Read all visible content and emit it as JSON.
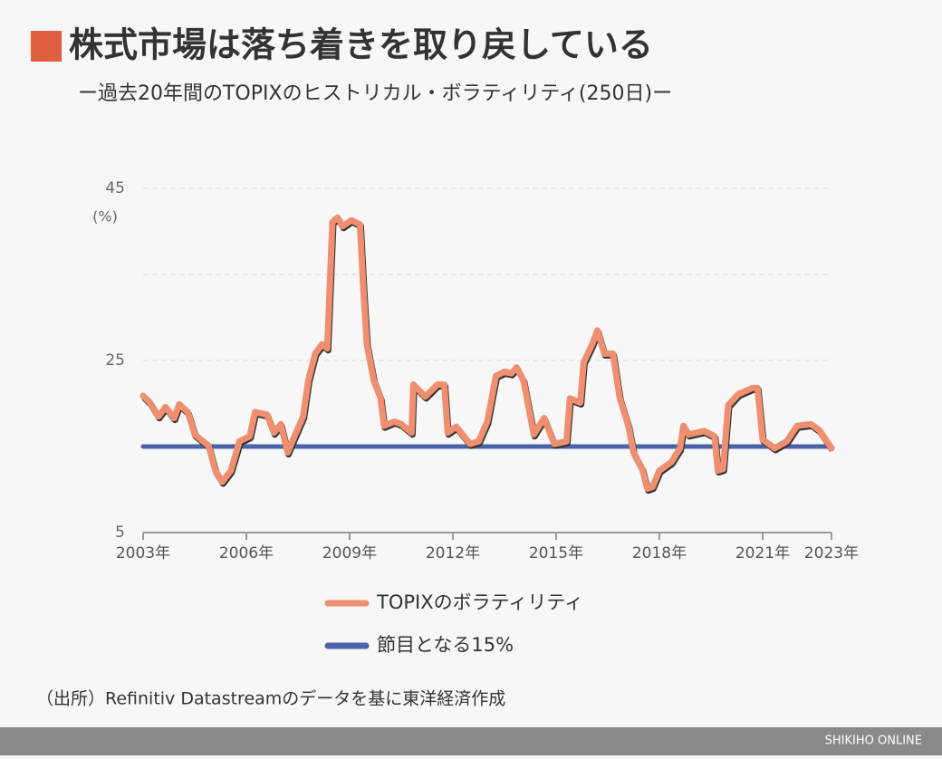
{
  "chart_data": {
    "type": "line",
    "title": "株式市場は落ち着きを取り戻している",
    "subtitle": "ー過去20年間のTOPIXのヒストリカル・ボラティリティ(250日)ー",
    "y_label": "(%)",
    "xlim": [
      2003,
      2023
    ],
    "xticks": [
      {
        "value": 2003,
        "label": "2003年"
      },
      {
        "value": 2006,
        "label": "2006年"
      },
      {
        "value": 2009,
        "label": "2009年"
      },
      {
        "value": 2012,
        "label": "2012年"
      },
      {
        "value": 2015,
        "label": "2015年"
      },
      {
        "value": 2018,
        "label": "2018年"
      },
      {
        "value": 2021,
        "label": "2021年"
      },
      {
        "value": 2023,
        "label": "2023年"
      }
    ],
    "ylim": [
      5,
      45
    ],
    "yticks": [
      5,
      25,
      45
    ],
    "grid": true,
    "series": [
      {
        "name": "TOPIXのボラティリティ",
        "color": "#ef8f6f",
        "x": [
          2003.0,
          2003.2,
          2003.45,
          2003.65,
          2003.9,
          2004.05,
          2004.3,
          2004.5,
          2004.9,
          2005.1,
          2005.3,
          2005.55,
          2005.8,
          2006.1,
          2006.25,
          2006.6,
          2006.8,
          2007.0,
          2007.2,
          2007.4,
          2007.65,
          2007.8,
          2008.0,
          2008.2,
          2008.35,
          2008.5,
          2008.65,
          2008.8,
          2009.05,
          2009.3,
          2009.4,
          2009.5,
          2009.7,
          2009.9,
          2010.0,
          2010.3,
          2010.5,
          2010.8,
          2010.85,
          2011.2,
          2011.55,
          2011.75,
          2011.85,
          2012.1,
          2012.5,
          2012.75,
          2013.0,
          2013.25,
          2013.5,
          2013.7,
          2013.85,
          2014.05,
          2014.35,
          2014.65,
          2014.95,
          2015.3,
          2015.4,
          2015.7,
          2015.8,
          2016.05,
          2016.2,
          2016.4,
          2016.65,
          2016.85,
          2017.1,
          2017.25,
          2017.5,
          2017.65,
          2017.8,
          2018.0,
          2018.35,
          2018.6,
          2018.7,
          2018.85,
          2019.3,
          2019.6,
          2019.7,
          2019.85,
          2020.0,
          2020.3,
          2020.7,
          2020.85,
          2021.0,
          2021.35,
          2021.7,
          2022.0,
          2022.4,
          2022.65,
          2023.0
        ],
        "values": [
          20.9,
          20.1,
          18.5,
          19.6,
          18.3,
          19.9,
          19.0,
          16.4,
          15.1,
          12.2,
          10.9,
          12.2,
          15.6,
          16.2,
          19.0,
          18.7,
          16.6,
          17.6,
          14.3,
          16.2,
          18.5,
          22.7,
          25.8,
          26.9,
          26.4,
          41.1,
          41.6,
          40.6,
          41.3,
          40.8,
          33.2,
          26.9,
          22.7,
          20.6,
          17.4,
          17.9,
          17.6,
          16.6,
          22.2,
          20.8,
          22.2,
          22.2,
          16.6,
          17.3,
          15.3,
          15.6,
          17.9,
          23.2,
          23.7,
          23.5,
          24.2,
          22.7,
          16.4,
          18.3,
          15.3,
          15.6,
          20.6,
          20.1,
          24.8,
          26.9,
          28.5,
          25.8,
          25.8,
          20.6,
          17.4,
          14.3,
          12.4,
          10.1,
          10.3,
          12.2,
          13.2,
          14.8,
          17.4,
          16.4,
          16.8,
          16.2,
          12.2,
          12.4,
          19.8,
          21.1,
          21.8,
          21.8,
          15.8,
          14.8,
          15.6,
          17.4,
          17.6,
          16.9,
          14.8
        ]
      },
      {
        "name": "節目となる15%",
        "color": "#4a63a8",
        "x": [
          2003,
          2023
        ],
        "values": [
          15,
          15
        ]
      }
    ]
  },
  "source": "（出所）Refinitiv Datastreamのデータを基に東洋経済作成",
  "footer": "SHIKIHO ONLINE"
}
